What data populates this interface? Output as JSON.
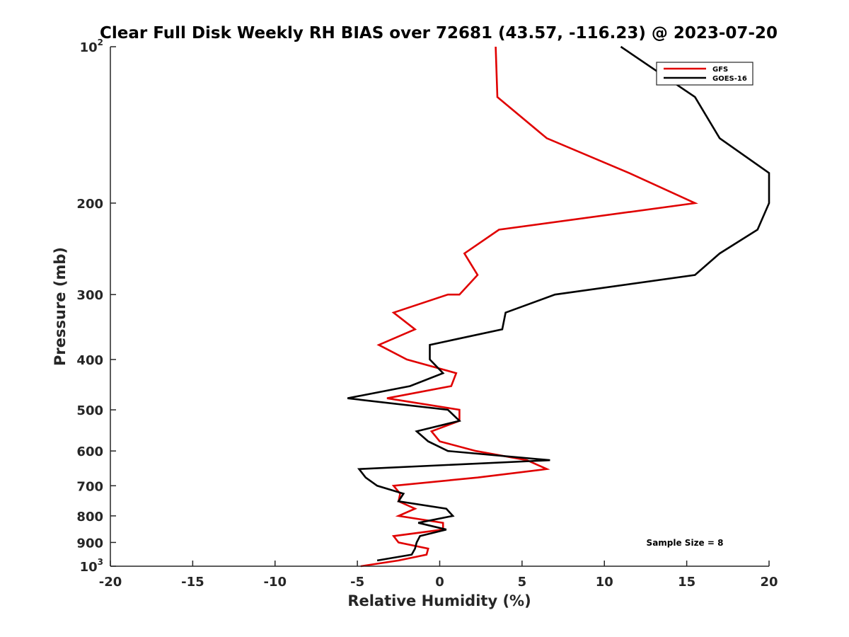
{
  "chart_data": {
    "type": "line",
    "title": "Clear Full Disk Weekly RH BIAS over 72681 (43.57, -116.23) @ 2023-07-20",
    "xlabel": "Relative Humidity (%)",
    "ylabel": "Pressure (mb)",
    "xlim": [
      -20,
      20
    ],
    "ylim": [
      100,
      1000
    ],
    "y_scale": "log",
    "y_reversed": true,
    "grid": false,
    "legend_position": "top-right",
    "x_ticks": [
      -20,
      -15,
      -10,
      -5,
      0,
      5,
      10,
      15,
      20
    ],
    "y_ticks": [
      {
        "value": 100,
        "base": "10",
        "exp": "2"
      },
      {
        "value": 200,
        "label": "200"
      },
      {
        "value": 300,
        "label": "300"
      },
      {
        "value": 400,
        "label": "400"
      },
      {
        "value": 500,
        "label": "500"
      },
      {
        "value": 600,
        "label": "600"
      },
      {
        "value": 700,
        "label": "700"
      },
      {
        "value": 800,
        "label": "800"
      },
      {
        "value": 900,
        "label": "900"
      },
      {
        "value": 1000,
        "base": "10",
        "exp": "3"
      }
    ],
    "series": [
      {
        "name": "GFS",
        "color": "#e00000",
        "points": [
          [
            3.4,
            100
          ],
          [
            3.5,
            125
          ],
          [
            6.5,
            150
          ],
          [
            11.5,
            175
          ],
          [
            15.5,
            200
          ],
          [
            3.6,
            225
          ],
          [
            1.5,
            250
          ],
          [
            2.3,
            275
          ],
          [
            1.2,
            300
          ],
          [
            0.5,
            300
          ],
          [
            -2.8,
            325
          ],
          [
            -1.5,
            350
          ],
          [
            -3.7,
            375
          ],
          [
            -2.0,
            400
          ],
          [
            1.0,
            425
          ],
          [
            0.7,
            450
          ],
          [
            -3.2,
            475
          ],
          [
            1.2,
            500
          ],
          [
            1.2,
            525
          ],
          [
            -0.5,
            550
          ],
          [
            0.0,
            575
          ],
          [
            2.2,
            600
          ],
          [
            5.3,
            625
          ],
          [
            6.5,
            650
          ],
          [
            2.3,
            675
          ],
          [
            -2.8,
            700
          ],
          [
            -2.4,
            725
          ],
          [
            -2.5,
            750
          ],
          [
            -1.5,
            775
          ],
          [
            -2.5,
            800
          ],
          [
            0.2,
            825
          ],
          [
            0.2,
            850
          ],
          [
            -2.8,
            875
          ],
          [
            -2.5,
            900
          ],
          [
            -0.7,
            925
          ],
          [
            -0.8,
            950
          ],
          [
            -2.5,
            975
          ],
          [
            -4.8,
            1000
          ]
        ]
      },
      {
        "name": "GOES-16",
        "color": "#000000",
        "points": [
          [
            11.0,
            100
          ],
          [
            15.5,
            125
          ],
          [
            17.0,
            150
          ],
          [
            20.0,
            175
          ],
          [
            20.0,
            200
          ],
          [
            19.3,
            225
          ],
          [
            17.0,
            250
          ],
          [
            15.5,
            275
          ],
          [
            7.0,
            300
          ],
          [
            4.0,
            325
          ],
          [
            3.8,
            350
          ],
          [
            -0.6,
            375
          ],
          [
            -0.6,
            400
          ],
          [
            0.2,
            425
          ],
          [
            -1.8,
            450
          ],
          [
            -5.6,
            475
          ],
          [
            0.5,
            500
          ],
          [
            1.2,
            525
          ],
          [
            -1.4,
            550
          ],
          [
            -0.7,
            575
          ],
          [
            0.5,
            600
          ],
          [
            6.7,
            625
          ],
          [
            -4.9,
            650
          ],
          [
            -4.5,
            675
          ],
          [
            -3.8,
            700
          ],
          [
            -2.2,
            725
          ],
          [
            -2.5,
            750
          ],
          [
            0.4,
            775
          ],
          [
            0.8,
            800
          ],
          [
            -1.3,
            825
          ],
          [
            0.4,
            850
          ],
          [
            -1.2,
            875
          ],
          [
            -1.4,
            900
          ],
          [
            -1.5,
            925
          ],
          [
            -1.7,
            950
          ],
          [
            -3.8,
            975
          ]
        ]
      }
    ],
    "annotation": "Sample Size = 8"
  }
}
